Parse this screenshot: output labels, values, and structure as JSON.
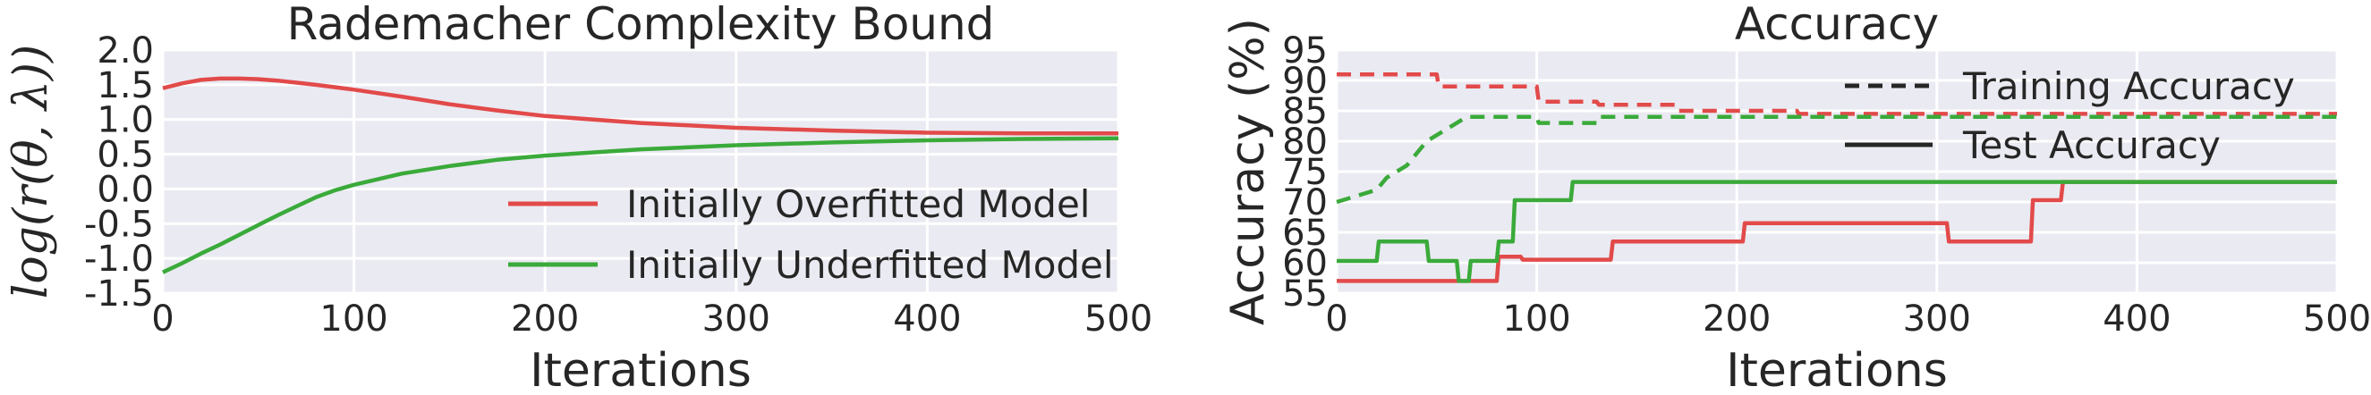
{
  "chart_data": [
    {
      "type": "line",
      "title": "Rademacher Complexity Bound",
      "xlabel": "Iterations",
      "ylabel": "log(r(θ, λ))",
      "xlim": [
        0,
        500
      ],
      "ylim": [
        -1.5,
        2.0
      ],
      "xticks": [
        "0",
        "100",
        "200",
        "300",
        "400",
        "500"
      ],
      "yticks": [
        "-1.5",
        "-1.0",
        "-0.5",
        "0.0",
        "0.5",
        "1.0",
        "1.5",
        "2.0"
      ],
      "grid": true,
      "legend_position": "lower-right",
      "series": [
        {
          "name": "Initially Overfitted Model",
          "color": "#e24a4a",
          "x": [
            0,
            10,
            20,
            30,
            40,
            50,
            60,
            70,
            80,
            100,
            125,
            150,
            175,
            200,
            250,
            300,
            350,
            400,
            450,
            500
          ],
          "y": [
            1.45,
            1.52,
            1.57,
            1.59,
            1.59,
            1.58,
            1.56,
            1.53,
            1.5,
            1.43,
            1.33,
            1.22,
            1.13,
            1.05,
            0.95,
            0.88,
            0.84,
            0.81,
            0.8,
            0.8
          ]
        },
        {
          "name": "Initially Underfitted Model",
          "color": "#3aaa3a",
          "x": [
            0,
            10,
            20,
            30,
            40,
            50,
            60,
            70,
            80,
            90,
            100,
            125,
            150,
            175,
            200,
            250,
            300,
            350,
            400,
            450,
            500
          ],
          "y": [
            -1.2,
            -1.07,
            -0.93,
            -0.8,
            -0.66,
            -0.52,
            -0.38,
            -0.25,
            -0.12,
            -0.02,
            0.06,
            0.22,
            0.33,
            0.42,
            0.48,
            0.57,
            0.63,
            0.67,
            0.7,
            0.72,
            0.73
          ]
        }
      ]
    },
    {
      "type": "line",
      "title": "Accuracy",
      "xlabel": "Iterations",
      "ylabel": "Accuracy (%)",
      "xlim": [
        0,
        500
      ],
      "ylim": [
        55,
        95
      ],
      "xticks": [
        "0",
        "100",
        "200",
        "300",
        "400",
        "500"
      ],
      "yticks": [
        "55",
        "60",
        "65",
        "70",
        "75",
        "80",
        "85",
        "90",
        "95"
      ],
      "grid": true,
      "legend_position": "upper-right",
      "legend": [
        {
          "label": "Training Accuracy",
          "linestyle": "dashed"
        },
        {
          "label": "Test Accuracy",
          "linestyle": "solid"
        }
      ],
      "series": [
        {
          "group": "Initially Overfitted Model",
          "linestyle": "dashed",
          "color": "#e24a4a",
          "x": [
            0,
            50,
            51,
            100,
            101,
            130,
            131,
            170,
            171,
            230,
            231,
            500
          ],
          "y": [
            91,
            91,
            89,
            89,
            86.5,
            86.5,
            86,
            86,
            85,
            85,
            84.5,
            84.5
          ]
        },
        {
          "group": "Initially Underfitted Model",
          "linestyle": "dashed",
          "color": "#3aaa3a",
          "x": [
            0,
            10,
            20,
            25,
            30,
            35,
            40,
            45,
            50,
            55,
            60,
            65,
            100,
            101,
            130,
            131,
            500
          ],
          "y": [
            70,
            71,
            72,
            74,
            75,
            76,
            78,
            80,
            81,
            82,
            83,
            84,
            84,
            83,
            83,
            84,
            84
          ]
        },
        {
          "group": "Initially Overfitted Model",
          "linestyle": "solid",
          "color": "#e24a4a",
          "x": [
            0,
            80,
            81,
            92,
            93,
            137,
            138,
            203,
            204,
            305,
            306,
            347,
            348,
            362,
            363,
            500
          ],
          "y": [
            57,
            57,
            61,
            61,
            60.5,
            60.5,
            63.5,
            63.5,
            66.5,
            66.5,
            63.5,
            63.5,
            70.3,
            70.3,
            73.3,
            73.3
          ]
        },
        {
          "group": "Initially Underfitted Model",
          "linestyle": "solid",
          "color": "#3aaa3a",
          "x": [
            0,
            20,
            21,
            45,
            46,
            60,
            61,
            66,
            67,
            80,
            81,
            88,
            89,
            117,
            118,
            500
          ],
          "y": [
            60.3,
            60.3,
            63.5,
            63.5,
            60.3,
            60.3,
            57,
            57,
            60.3,
            60.3,
            63.5,
            63.5,
            70.3,
            70.3,
            73.3,
            73.3
          ]
        }
      ]
    }
  ]
}
